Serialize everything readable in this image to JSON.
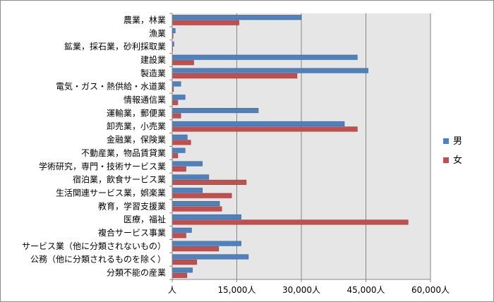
{
  "chart_data": {
    "type": "bar",
    "orientation": "horizontal",
    "categories": [
      "農業，林業",
      "漁業",
      "鉱業，採石業，砂利採取業",
      "建設業",
      "製造業",
      "電気・ガス・熱供給・水道業",
      "情報通信業",
      "運輸業，郵便業",
      "卸売業，小売業",
      "金融業，保険業",
      "不動産業，物品賃貸業",
      "学術研究，専門・技術サービス業",
      "宿泊業，飲食サービス業",
      "生活関連サービス業，娯楽業",
      "教育，学習支援業",
      "医療，福祉",
      "複合サービス事業",
      "サービス業（他に分類されないもの）",
      "公務（他に分類されるものを除く）",
      "分類不能の産業"
    ],
    "series": [
      {
        "name": "男",
        "color": "#4f81bd",
        "values": [
          30000,
          700,
          400,
          43000,
          45500,
          2000,
          3000,
          20000,
          40000,
          3500,
          3000,
          7000,
          8500,
          7000,
          11000,
          16000,
          4500,
          16000,
          17700,
          4700
        ]
      },
      {
        "name": "女",
        "color": "#c0504d",
        "values": [
          15500,
          200,
          100,
          5000,
          29000,
          300,
          1300,
          2000,
          43000,
          4300,
          1300,
          3200,
          17200,
          13800,
          11500,
          54800,
          3200,
          10800,
          5700,
          3400
        ]
      }
    ],
    "xticks": [
      "人",
      "15,000人",
      "30,000人",
      "45,000人",
      "60,000人"
    ],
    "xlim": [
      0,
      60000
    ],
    "grid": true,
    "legend_position": "right"
  }
}
